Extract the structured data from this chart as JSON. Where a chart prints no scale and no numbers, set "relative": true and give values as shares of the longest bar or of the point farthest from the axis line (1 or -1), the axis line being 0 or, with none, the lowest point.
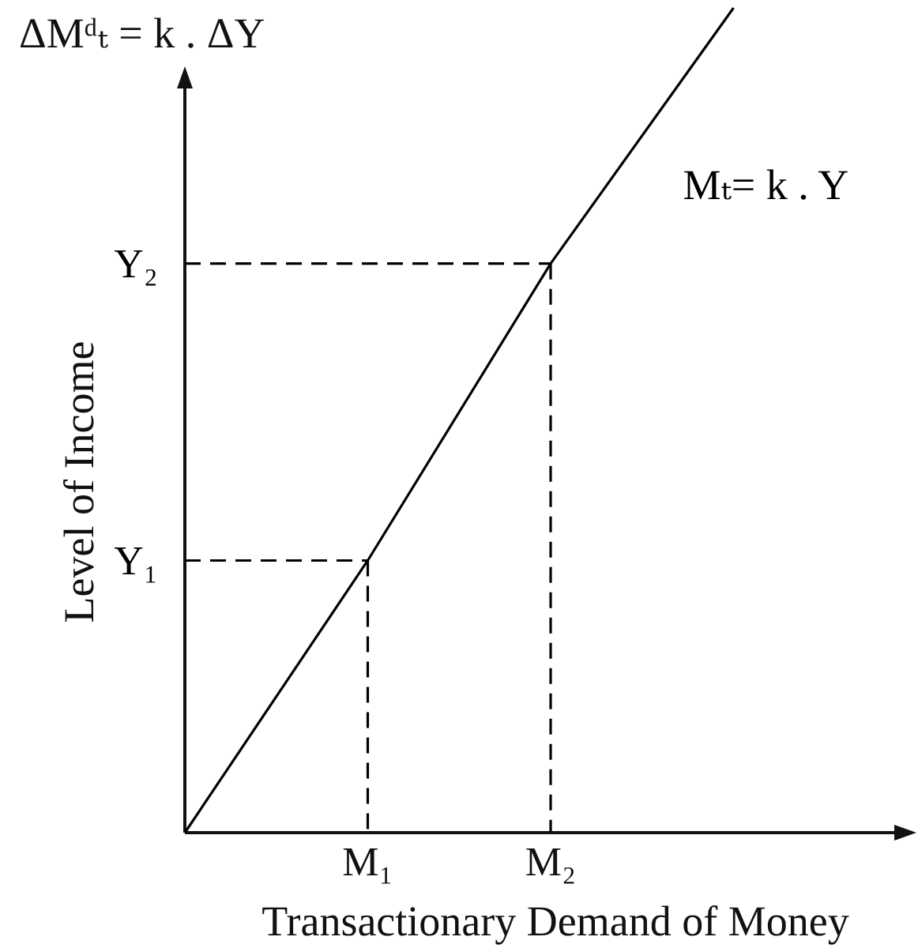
{
  "chart_data": {
    "type": "line",
    "relative": true,
    "xlabel": "Transactionary Demand of Money",
    "ylabel": "Level of Income",
    "annotations": [
      "ΔMᵈₜ = k . ΔY"
    ],
    "categories": [
      null,
      "M₁",
      "M₂",
      null,
      null
    ],
    "marker": "none",
    "line_style": "solid",
    "series": [
      {
        "name": "Mₜ= k . Y",
        "color": "#000000",
        "values": [
          0,
          0.33,
          0.69,
          1,
          null
        ]
      },
      {
        "name": "Y₁",
        "color": "#000000",
        "line_style": "dashed",
        "values": [
          0.33,
          0.33,
          null,
          null,
          null
        ]
      },
      {
        "color": "#000000",
        "line_style": "dashed",
        "x": [
          "M₁",
          "M₁"
        ],
        "values": [
          0.33,
          0
        ]
      },
      {
        "name": "Y₂",
        "color": "#000000",
        "line_style": "dashed",
        "values": [
          0.69,
          0.69,
          0.69,
          null,
          null
        ]
      },
      {
        "color": "#000000",
        "line_style": "dashed",
        "x": [
          "M₂",
          "M₂"
        ],
        "values": [
          0.69,
          0
        ]
      }
    ]
  }
}
